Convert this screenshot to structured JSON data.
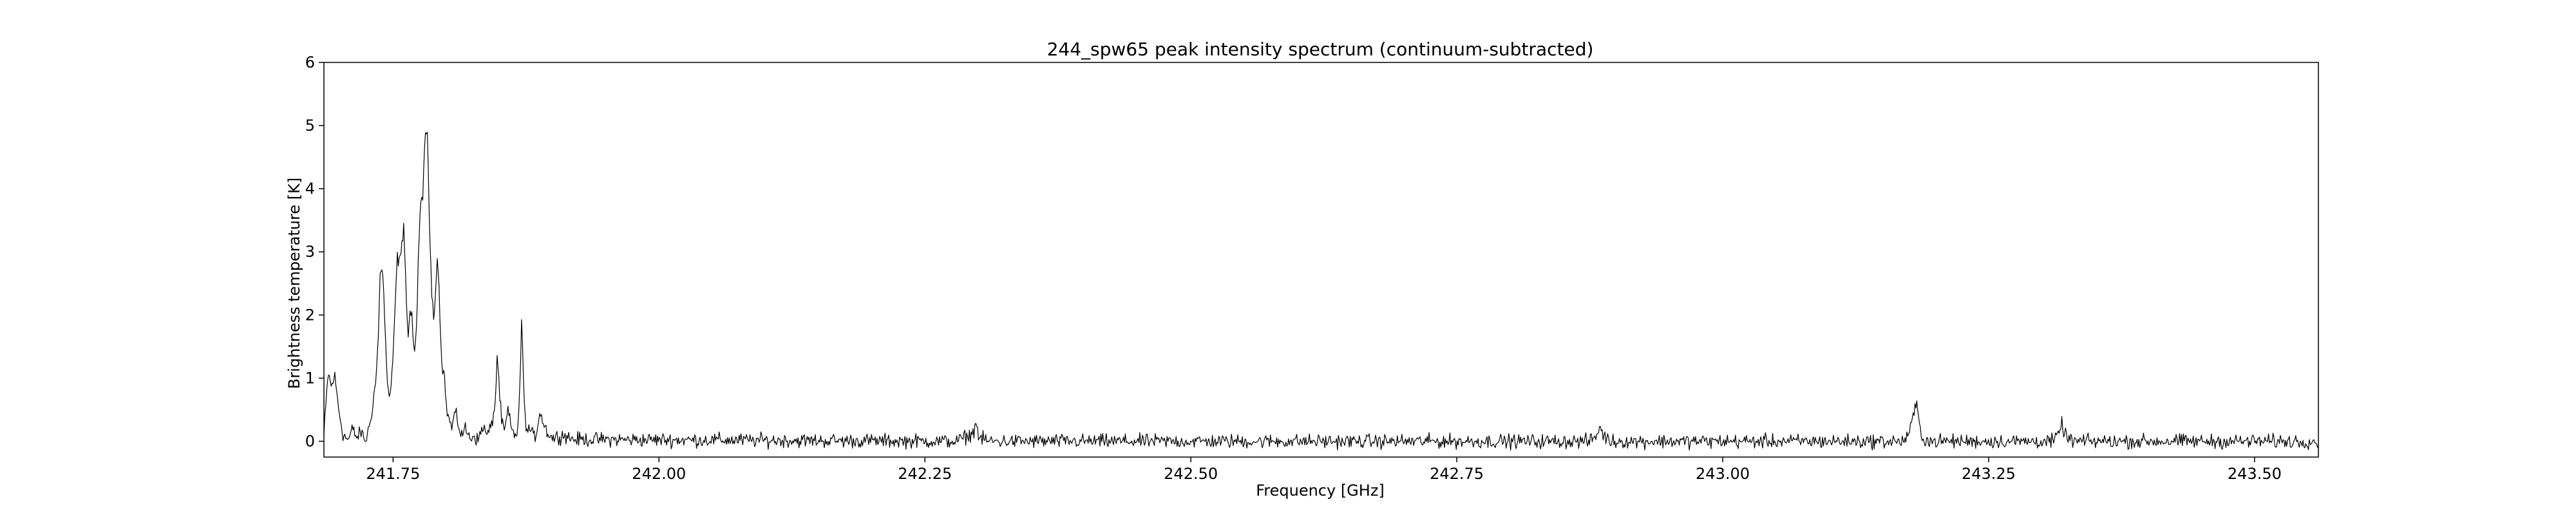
{
  "chart_data": {
    "type": "line",
    "title": "244_spw65 peak intensity spectrum (continuum-subtracted)",
    "xlabel": "Frequency [GHz]",
    "ylabel": "Brightness temperature [K]",
    "xlim": [
      241.685,
      243.56
    ],
    "ylim": [
      -0.25,
      6
    ],
    "x_ticks": [
      241.75,
      242.0,
      242.25,
      242.5,
      242.75,
      243.0,
      243.25,
      243.5
    ],
    "x_tick_labels": [
      "241.75",
      "242.00",
      "242.25",
      "242.50",
      "242.75",
      "243.00",
      "243.25",
      "243.50"
    ],
    "y_ticks": [
      0,
      1,
      2,
      3,
      4,
      5,
      6
    ],
    "y_tick_labels": [
      "0",
      "1",
      "2",
      "3",
      "4",
      "5",
      "6"
    ],
    "grid": false,
    "legend": "none",
    "line_color": "#000000",
    "noise_rms": 0.05,
    "series": [
      {
        "x": [
          241.685,
          241.689,
          241.692,
          241.695,
          241.699,
          241.703,
          241.708,
          241.712,
          241.716,
          241.72,
          241.724,
          241.728,
          241.731,
          241.734,
          241.736,
          241.738,
          241.74,
          241.742,
          241.744,
          241.746,
          241.748,
          241.75,
          241.752,
          241.754,
          241.756,
          241.758,
          241.76,
          241.762,
          241.764,
          241.766,
          241.768,
          241.77,
          241.772,
          241.774,
          241.776,
          241.778,
          241.78,
          241.782,
          241.784,
          241.786,
          241.788,
          241.79,
          241.792,
          241.794,
          241.796,
          241.798,
          241.8,
          241.802,
          241.805,
          241.808,
          241.811,
          241.814,
          241.818,
          241.822,
          241.826,
          241.83,
          241.834,
          241.838,
          241.842,
          241.846,
          241.848,
          241.85,
          241.852,
          241.855,
          241.858,
          241.861,
          241.864,
          241.867,
          241.869,
          241.871,
          241.873,
          241.876,
          241.879,
          241.882,
          241.885,
          241.888,
          241.891,
          241.895,
          241.9,
          241.91,
          241.92,
          242.28,
          242.295,
          242.298,
          242.301,
          242.31,
          242.875,
          242.882,
          242.885,
          242.888,
          242.895,
          243.17,
          243.176,
          243.179,
          243.182,
          243.185,
          243.188,
          243.195,
          243.31,
          243.316,
          243.319,
          243.322,
          243.33
        ],
        "y": [
          0.1,
          1.1,
          0.85,
          1.05,
          0.5,
          0.1,
          0.02,
          0.2,
          0.05,
          0.15,
          0.0,
          0.25,
          0.6,
          1.0,
          1.6,
          2.7,
          2.8,
          2.0,
          1.1,
          0.7,
          0.8,
          1.3,
          2.2,
          2.9,
          2.85,
          3.0,
          3.5,
          2.5,
          1.6,
          2.1,
          1.9,
          1.3,
          1.8,
          3.1,
          3.7,
          3.85,
          4.9,
          4.95,
          3.6,
          2.5,
          2.0,
          2.4,
          3.0,
          2.0,
          1.2,
          1.1,
          0.55,
          0.4,
          0.2,
          0.45,
          0.3,
          0.1,
          0.2,
          0.05,
          0.1,
          0.0,
          0.25,
          0.1,
          0.2,
          0.6,
          1.4,
          0.8,
          0.3,
          0.15,
          0.5,
          0.2,
          0.1,
          0.15,
          0.7,
          2.05,
          0.6,
          0.15,
          0.2,
          0.05,
          0.15,
          0.5,
          0.3,
          0.15,
          0.05,
          0.1,
          0.03,
          0.0,
          0.12,
          0.3,
          0.05,
          0.0,
          0.0,
          0.1,
          0.25,
          0.08,
          0.0,
          0.0,
          0.15,
          0.4,
          0.6,
          0.25,
          0.05,
          0.0,
          0.0,
          0.1,
          0.3,
          0.08,
          0.0
        ]
      }
    ]
  }
}
